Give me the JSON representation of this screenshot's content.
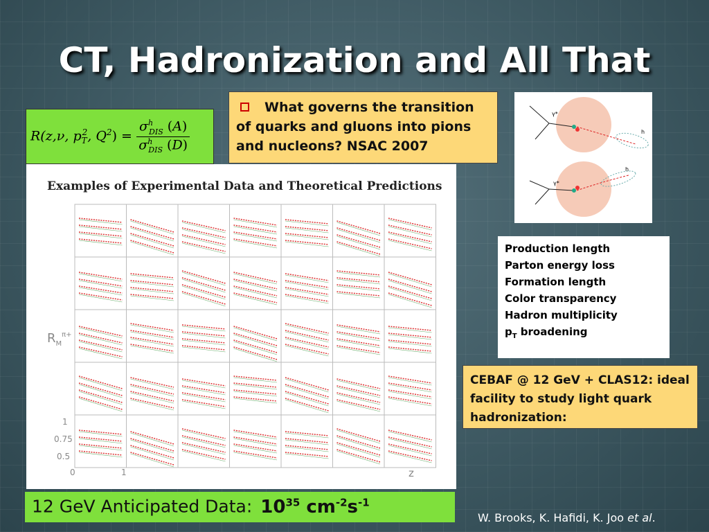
{
  "title": "CT, Hadronization and All That",
  "formula": {
    "lhs": [
      "R(",
      "z",
      ",",
      "ν",
      ", ",
      "p",
      "T",
      "2",
      ", ",
      "Q",
      "2",
      ") ="
    ],
    "num": [
      "σ",
      "h",
      "DIS",
      " (",
      "A",
      ")"
    ],
    "den": [
      "σ",
      "h",
      "DIS",
      " (",
      "D",
      ")"
    ]
  },
  "question": "What governs the transition of quarks and gluons into pions and nucleons?  NSAC 2007",
  "figure": {
    "title": "Examples of Experimental Data and Theoretical Predictions",
    "ylabel": [
      "R",
      "M",
      "π+"
    ],
    "yticks": [
      "1",
      "0.75",
      "0.5"
    ],
    "xticks": [
      "0",
      "1"
    ],
    "xlabel": "z"
  },
  "diagram": {
    "labels": [
      "γ*",
      "h",
      "γ*",
      "h"
    ]
  },
  "topics": [
    "Production length",
    "Parton energy loss",
    "Formation length",
    "Color transparency",
    "Hadron multiplicity",
    [
      "p",
      "T",
      " broadening"
    ]
  ],
  "facility": "CEBAF @ 12 GeV + CLAS12: ideal facility to study light quark hadronization:",
  "banner": [
    "12 GeV Anticipated Data:",
    "10",
    "35",
    " cm",
    "-2",
    "s",
    "-1"
  ],
  "credit": [
    "W. Brooks, K. Hafidi, K. Joo ",
    "et al",
    "."
  ]
}
